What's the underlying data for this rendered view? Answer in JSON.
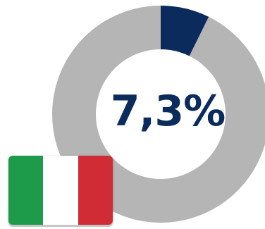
{
  "chart_data": {
    "type": "pie",
    "variant": "donut",
    "slices": [
      {
        "label": "",
        "value": 7.3,
        "color": "#0a2b5c"
      },
      {
        "label": "",
        "value": 92.7,
        "color": "#b5b5b5"
      }
    ],
    "center_label": "7,3%"
  },
  "flag": {
    "icon": "italy-flag-icon",
    "colors": [
      "#1e9a4b",
      "#ffffff",
      "#d12c36"
    ]
  }
}
